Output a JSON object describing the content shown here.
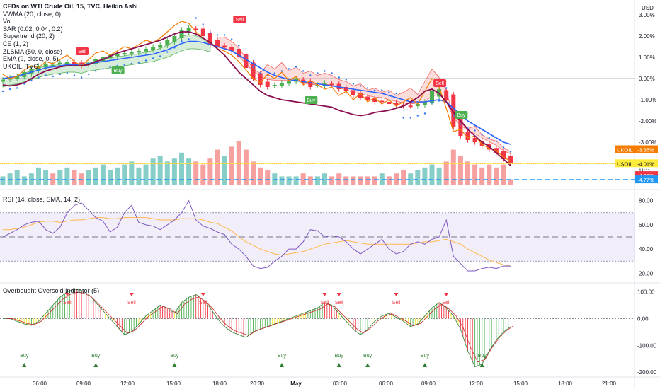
{
  "legend": {
    "title": "CFDs on WTI Crude Oil, 15, TVC, Heikin Ashi",
    "indicators": [
      "VWMA (20, close, 0)",
      "Vol",
      "SAR (0.02, 0.04, 0.2)",
      "Supertrend (20, 2)",
      "CE (1, 2)",
      "ZLSMA (50, 0, close)",
      "EMA (9, close, 0, 5)",
      "UKOIL, TVC"
    ]
  },
  "currency": "USD",
  "rsi_title": "RSI (14, close, SMA, 14, 2)",
  "ob_title": "Overbought Oversold Indicator (5)",
  "price_axis": [
    "3.00%",
    "2.00%",
    "1.00%",
    "0.00%",
    "-1.00%",
    "-2.00%",
    "-3.00%"
  ],
  "rsi_axis": [
    "80.00",
    "60.00",
    "40.00",
    "20.00"
  ],
  "ob_axis": [
    "100.00",
    "0.00",
    "-100.00",
    "-200.00"
  ],
  "time_axis": [
    "06:00",
    "09:00",
    "12:00",
    "15:00",
    "18:00",
    "20:30",
    "May",
    "03:00",
    "06:00",
    "09:00",
    "12:00",
    "15:00",
    "18:00",
    "21:00"
  ],
  "tags": {
    "ukoil_label": "UKOIL",
    "ukoil_value": "-3.35%",
    "usoil_label": "USOIL",
    "usoil_value": "-4.01%",
    "usoil_time": "11:11",
    "red_value": "-4.02%",
    "blue_value": "-4.77%"
  },
  "signals": {
    "buy": "Buy",
    "sell": "Sell"
  },
  "colors": {
    "up": "#26a69a",
    "down": "#ef5350",
    "vwma": "#2962ff",
    "ema": "#f57c00",
    "zlsma": "#880e4f",
    "rsi": "#7e57c2",
    "rsima": "#ffb74d",
    "green": "#4caf50",
    "red": "#f23645",
    "yellow": "#ffeb3b",
    "dash": "#2196f3"
  },
  "chart_data": {
    "type": "line",
    "x_ticks": [
      "06:00",
      "09:00",
      "12:00",
      "15:00",
      "18:00",
      "20:30",
      "May",
      "03:00",
      "06:00",
      "09:00",
      "12:00",
      "15:00",
      "18:00",
      "21:00"
    ],
    "price": {
      "ylabel": "%",
      "ylim": [
        -4.8,
        3.2
      ],
      "close": [
        -0.05,
        0.05,
        0.1,
        0.3,
        0.45,
        0.6,
        0.7,
        0.65,
        0.75,
        0.8,
        0.7,
        0.6,
        0.75,
        0.9,
        1.0,
        1.1,
        1.15,
        1.2,
        1.25,
        1.3,
        1.4,
        1.5,
        1.6,
        1.8,
        2.0,
        2.3,
        2.4,
        2.3,
        2.0,
        1.6,
        1.5,
        1.5,
        1.3,
        1.0,
        0.5,
        0.0,
        -0.3,
        -0.4,
        -0.3,
        -0.2,
        -0.1,
        0.0,
        -0.2,
        -0.4,
        -0.3,
        -0.2,
        -0.3,
        -0.5,
        -0.6,
        -0.8,
        -0.9,
        -1.0,
        -1.1,
        -1.1,
        -1.2,
        -1.25,
        -1.3,
        -1.3,
        -1.2,
        -1.1,
        -0.6,
        -0.5,
        -1.0,
        -2.3,
        -2.7,
        -2.9,
        -3.0,
        -3.2,
        -3.35,
        -3.5,
        -3.8,
        -4.0
      ],
      "series": [
        {
          "name": "VWMA (20, close, 0)",
          "values": [
            0.0,
            0.05,
            0.1,
            0.2,
            0.3,
            0.4,
            0.5,
            0.55,
            0.6,
            0.65,
            0.65,
            0.65,
            0.7,
            0.75,
            0.8,
            0.85,
            0.9,
            0.95,
            1.0,
            1.05,
            1.1,
            1.15,
            1.25,
            1.35,
            1.5,
            1.65,
            1.75,
            1.75,
            1.7,
            1.6,
            1.5,
            1.4,
            1.3,
            1.1,
            0.9,
            0.7,
            0.5,
            0.3,
            0.15,
            0.05,
            -0.05,
            -0.1,
            -0.15,
            -0.2,
            -0.25,
            -0.3,
            -0.35,
            -0.4,
            -0.45,
            -0.5,
            -0.55,
            -0.6,
            -0.65,
            -0.7,
            -0.8,
            -0.9,
            -1.0,
            -1.1,
            -1.1,
            -1.1,
            -1.05,
            -1.0,
            -1.1,
            -1.4,
            -1.7,
            -2.0,
            -2.2,
            -2.4,
            -2.6,
            -2.8,
            -3.0,
            -3.1
          ]
        },
        {
          "name": "EMA (9, close, 0, 5)",
          "values": [
            0.2,
            0.0,
            0.1,
            0.4,
            0.6,
            0.5,
            0.8,
            0.7,
            0.9,
            1.1,
            0.8,
            0.6,
            0.9,
            1.2,
            1.3,
            1.1,
            1.3,
            1.5,
            1.4,
            1.6,
            1.8,
            1.7,
            1.9,
            2.2,
            2.5,
            2.7,
            2.6,
            2.2,
            1.9,
            1.7,
            1.4,
            1.3,
            1.1,
            0.8,
            0.4,
            0.0,
            -0.2,
            0.2,
            0.0,
            0.3,
            -0.1,
            0.1,
            -0.3,
            -0.1,
            -0.3,
            -0.5,
            -0.4,
            -0.8,
            -0.6,
            -1.0,
            -0.7,
            -1.1,
            -0.9,
            -1.2,
            -1.0,
            -1.3,
            -1.1,
            -0.9,
            -1.2,
            -0.6,
            0.0,
            -0.4,
            -1.4,
            -2.5,
            -2.4,
            -2.8,
            -2.7,
            -3.1,
            -3.3,
            -3.4,
            -3.7,
            -3.9
          ]
        },
        {
          "name": "ZLSMA (50, 0, close)",
          "values": [
            -0.3,
            -0.35,
            -0.3,
            -0.2,
            0.0,
            0.2,
            0.35,
            0.45,
            0.55,
            0.6,
            0.6,
            0.6,
            0.65,
            0.8,
            0.9,
            1.05,
            1.2,
            1.3,
            1.4,
            1.5,
            1.6,
            1.7,
            1.8,
            1.95,
            2.1,
            2.2,
            2.2,
            2.1,
            1.9,
            1.7,
            1.4,
            1.1,
            0.7,
            0.3,
            0.0,
            -0.3,
            -0.6,
            -0.8,
            -0.9,
            -1.0,
            -1.05,
            -1.1,
            -1.15,
            -1.2,
            -1.25,
            -1.3,
            -1.35,
            -1.5,
            -1.6,
            -1.7,
            -1.75,
            -1.7,
            -1.6,
            -1.55,
            -1.5,
            -1.4,
            -1.3,
            -1.1,
            -0.9,
            -0.6,
            -0.5,
            -0.7,
            -1.1,
            -1.6,
            -2.0,
            -2.4,
            -2.7,
            -3.0,
            -3.2,
            -3.5,
            -3.8,
            -4.1
          ]
        }
      ],
      "vol": [
        0.3,
        0.4,
        0.5,
        0.3,
        0.4,
        0.6,
        0.5,
        0.4,
        0.5,
        0.6,
        0.5,
        0.4,
        0.5,
        0.6,
        0.7,
        0.5,
        0.6,
        0.7,
        0.8,
        0.6,
        0.7,
        0.9,
        1.0,
        0.8,
        0.9,
        1.1,
        0.9,
        0.8,
        0.7,
        0.9,
        1.2,
        1.0,
        1.3,
        1.5,
        1.2,
        0.8,
        0.6,
        0.5,
        0.4,
        0.3,
        0.3,
        0.3,
        0.4,
        0.3,
        0.3,
        0.4,
        0.3,
        0.4,
        0.3,
        0.3,
        0.3,
        0.3,
        0.3,
        0.4,
        0.3,
        0.4,
        0.5,
        0.4,
        0.5,
        0.6,
        0.7,
        0.6,
        0.8,
        1.2,
        1.0,
        0.8,
        0.7,
        0.6,
        0.7,
        0.6,
        0.7,
        0.2
      ]
    },
    "rsi": {
      "ylim": [
        15,
        85
      ],
      "series": [
        {
          "name": "RSI",
          "values": [
            50,
            53,
            56,
            60,
            62,
            63,
            56,
            53,
            58,
            70,
            76,
            78,
            72,
            66,
            63,
            54,
            58,
            70,
            76,
            62,
            60,
            59,
            56,
            60,
            64,
            70,
            80,
            64,
            59,
            57,
            54,
            52,
            44,
            40,
            34,
            26,
            24,
            25,
            30,
            34,
            40,
            40,
            46,
            56,
            55,
            50,
            51,
            50,
            46,
            40,
            36,
            40,
            44,
            48,
            40,
            36,
            38,
            44,
            46,
            44,
            48,
            50,
            64,
            34,
            28,
            22,
            22,
            24,
            25,
            24,
            26,
            26
          ]
        },
        {
          "name": "RSI-based MA",
          "values": [
            56,
            56,
            57,
            58,
            60,
            62,
            63,
            63,
            62,
            63,
            64,
            64,
            65,
            66,
            66,
            65,
            65,
            66,
            66,
            66,
            66,
            65,
            64,
            64,
            64,
            65,
            65,
            65,
            64,
            62,
            61,
            58,
            55,
            50,
            46,
            43,
            40,
            38,
            36,
            35,
            36,
            37,
            38,
            40,
            42,
            44,
            45,
            46,
            47,
            46,
            45,
            44,
            44,
            44,
            44,
            44,
            44,
            44,
            45,
            46,
            46,
            47,
            48,
            46,
            44,
            40,
            37,
            34,
            31,
            29,
            27,
            26
          ]
        }
      ],
      "bands": [
        70,
        50,
        30
      ]
    },
    "overbought_oversold": {
      "ylim": [
        -210,
        120
      ],
      "values": [
        0,
        0,
        -10,
        -20,
        -25,
        -10,
        20,
        50,
        80,
        100,
        110,
        105,
        90,
        60,
        30,
        0,
        -30,
        -60,
        -50,
        -20,
        10,
        30,
        50,
        40,
        20,
        60,
        80,
        90,
        70,
        40,
        0,
        -30,
        -50,
        -60,
        -70,
        -50,
        -40,
        -30,
        -20,
        -10,
        0,
        10,
        20,
        30,
        40,
        60,
        50,
        20,
        -10,
        -40,
        -60,
        -40,
        -10,
        10,
        20,
        5,
        -10,
        -30,
        -20,
        10,
        40,
        60,
        40,
        10,
        -40,
        -120,
        -180,
        -170,
        -120,
        -80,
        -50,
        -30
      ]
    }
  }
}
